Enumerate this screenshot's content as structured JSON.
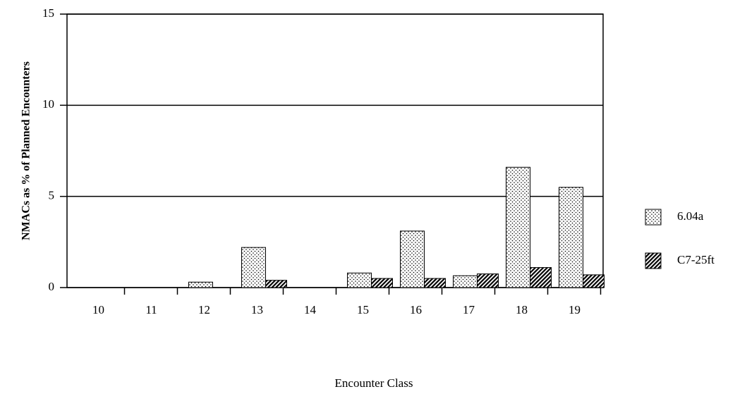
{
  "chart_data": {
    "type": "bar",
    "xlabel": "Encounter Class",
    "ylabel": "NMACs as % of Planned Encounters",
    "categories": [
      "10",
      "11",
      "12",
      "13",
      "14",
      "15",
      "16",
      "17",
      "18",
      "19"
    ],
    "series": [
      {
        "name": "6.04a",
        "color": "#000000",
        "pattern": "dots",
        "values": [
          0,
          0,
          0.3,
          2.2,
          0,
          0.8,
          3.1,
          0.65,
          6.6,
          5.5
        ]
      },
      {
        "name": "C7-25ft",
        "color": "#000000",
        "pattern": "hatch",
        "values": [
          0,
          0,
          0,
          0.4,
          0,
          0.5,
          0.5,
          0.75,
          1.1,
          0.7
        ]
      }
    ],
    "ylim": [
      0,
      15
    ],
    "yticks": [
      0,
      5,
      10,
      15
    ],
    "grid": true,
    "legend": "right"
  }
}
